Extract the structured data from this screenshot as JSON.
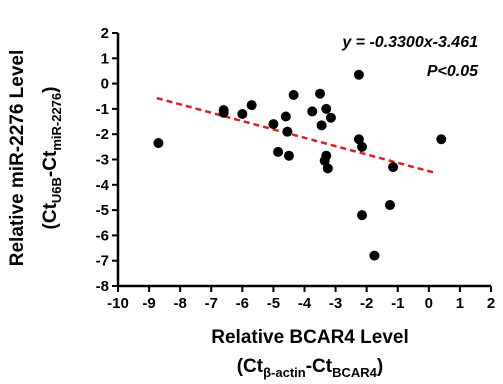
{
  "chart_data": {
    "type": "scatter",
    "title": "",
    "xlabel": {
      "line1": "Relative BCAR4 Level",
      "line2_prefix": "(Ct",
      "line2_sub1": "β-actin",
      "line2_mid": "-Ct",
      "line2_sub2": "BCAR4",
      "line2_suffix": ")"
    },
    "ylabel": {
      "line1": "Relative miR-2276 Level",
      "line2_prefix": "(Ct",
      "line2_sub1": "U6B",
      "line2_mid": "-Ct",
      "line2_sub2": "miR-2276",
      "line2_suffix": ")"
    },
    "xlim": [
      -10,
      2
    ],
    "ylim": [
      -8,
      2
    ],
    "x_ticks": [
      -10,
      -9,
      -8,
      -7,
      -6,
      -5,
      -4,
      -3,
      -2,
      -1,
      0,
      1,
      2
    ],
    "y_ticks": [
      2,
      1,
      0,
      -1,
      -2,
      -3,
      -4,
      -5,
      -6,
      -7,
      -8
    ],
    "grid": false,
    "points": [
      {
        "x": -8.7,
        "y": -2.35
      },
      {
        "x": -6.6,
        "y": -1.05
      },
      {
        "x": -6.6,
        "y": -1.15
      },
      {
        "x": -6.0,
        "y": -1.2
      },
      {
        "x": -5.7,
        "y": -0.85
      },
      {
        "x": -5.0,
        "y": -1.6
      },
      {
        "x": -4.85,
        "y": -2.7
      },
      {
        "x": -4.6,
        "y": -1.3
      },
      {
        "x": -4.55,
        "y": -1.9
      },
      {
        "x": -4.5,
        "y": -2.85
      },
      {
        "x": -4.35,
        "y": -0.45
      },
      {
        "x": -3.75,
        "y": -1.1
      },
      {
        "x": -3.5,
        "y": -0.4
      },
      {
        "x": -3.45,
        "y": -1.65
      },
      {
        "x": -3.35,
        "y": -3.05
      },
      {
        "x": -3.3,
        "y": -2.85
      },
      {
        "x": -3.3,
        "y": -1.0
      },
      {
        "x": -3.25,
        "y": -3.35
      },
      {
        "x": -3.15,
        "y": -1.35
      },
      {
        "x": -2.25,
        "y": 0.35
      },
      {
        "x": -2.25,
        "y": -2.2
      },
      {
        "x": -2.15,
        "y": -2.5
      },
      {
        "x": -2.15,
        "y": -5.2
      },
      {
        "x": -1.75,
        "y": -6.8
      },
      {
        "x": -1.25,
        "y": -4.8
      },
      {
        "x": -1.15,
        "y": -3.3
      },
      {
        "x": 0.4,
        "y": -2.2
      }
    ],
    "fit_line": {
      "slope": -0.33,
      "intercept": -3.461,
      "x_range": [
        -8.75,
        0.2
      ],
      "color": "#e02020"
    },
    "point_color": "#000000",
    "annotations": {
      "equation": "y = -0.3300x-3.461",
      "pvalue": "P<0.05"
    }
  }
}
